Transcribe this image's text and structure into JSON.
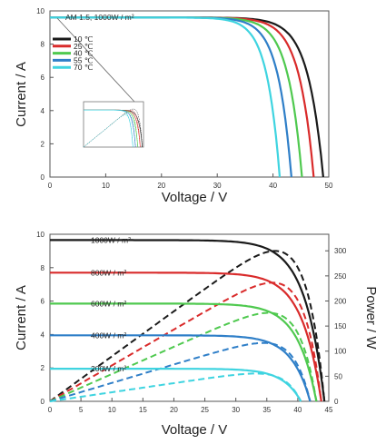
{
  "chart_data": [
    {
      "type": "line",
      "title": "",
      "annotation": "AM 1.5, 1000W / m²",
      "xlabel": "Voltage / V",
      "ylabel": "Current / A",
      "xlim": [
        0,
        50
      ],
      "ylim": [
        0,
        10
      ],
      "x_ticks": [
        "0",
        "10",
        "20",
        "30",
        "40",
        "50"
      ],
      "y_ticks": [
        "0",
        "2",
        "4",
        "6",
        "8",
        "10"
      ],
      "grid": false,
      "legend_position": "left",
      "inset": "thumbnail plot of I–V and P–V curves for several temperatures",
      "series": [
        {
          "name": "10 ℃",
          "color": "#1a1a1a",
          "isc": 9.6,
          "voc": 49.0
        },
        {
          "name": "25 ℃",
          "color": "#d92b2b",
          "isc": 9.6,
          "voc": 47.3
        },
        {
          "name": "40 ℃",
          "color": "#4fc94f",
          "isc": 9.6,
          "voc": 45.2
        },
        {
          "name": "55 ℃",
          "color": "#2f7fc8",
          "isc": 9.6,
          "voc": 43.3
        },
        {
          "name": "70 ℃",
          "color": "#3fd4e0",
          "isc": 9.6,
          "voc": 41.2
        }
      ]
    },
    {
      "type": "line",
      "title": "",
      "xlabel": "Voltage / V",
      "ylabel": "Current / A",
      "y2label": "Power / W",
      "xlim": [
        0,
        45
      ],
      "ylim": [
        0,
        10
      ],
      "y2lim": [
        0,
        333
      ],
      "x_ticks": [
        "0",
        "5",
        "10",
        "15",
        "20",
        "25",
        "30",
        "35",
        "40",
        "45"
      ],
      "y_ticks": [
        "0",
        "2",
        "4",
        "6",
        "8",
        "10"
      ],
      "y2_ticks": [
        "0",
        "50",
        "100",
        "150",
        "200",
        "250",
        "300"
      ],
      "grid": false,
      "legend_position": "inline",
      "series": [
        {
          "name": "1000W / m²",
          "color": "#1a1a1a",
          "isc": 9.65,
          "voc": 44.3
        },
        {
          "name": "800W / m²",
          "color": "#d92b2b",
          "isc": 7.7,
          "voc": 43.8
        },
        {
          "name": "600W / m²",
          "color": "#4fc94f",
          "isc": 5.85,
          "voc": 43.0
        },
        {
          "name": "400W / m²",
          "color": "#2f7fc8",
          "isc": 3.95,
          "voc": 42.0
        },
        {
          "name": "200W / m²",
          "color": "#3fd4e0",
          "isc": 1.95,
          "voc": 40.5
        }
      ]
    }
  ]
}
